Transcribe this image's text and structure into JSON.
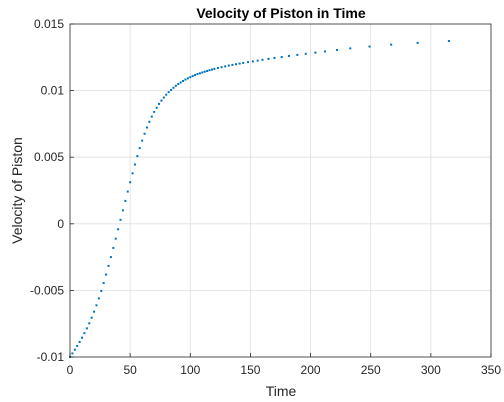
{
  "chart_data": {
    "type": "scatter",
    "title": "Velocity of Piston in Time",
    "xlabel": "Time",
    "ylabel": "Velocity of Piston",
    "xlim": [
      0,
      350
    ],
    "ylim": [
      -0.01,
      0.015
    ],
    "xticks": [
      0,
      50,
      100,
      150,
      200,
      250,
      300,
      350
    ],
    "yticks": [
      -0.01,
      -0.005,
      0,
      0.005,
      0.01,
      0.015
    ],
    "xtick_labels": [
      "0",
      "50",
      "100",
      "150",
      "200",
      "250",
      "300",
      "350"
    ],
    "ytick_labels": [
      "-0.01",
      "-0.005",
      "0",
      "0.005",
      "0.01",
      "0.015"
    ],
    "grid": true,
    "box": true,
    "marker_color": "#0072BD",
    "series": [
      {
        "x": [
          0,
          2,
          4,
          6,
          8,
          10,
          12,
          14,
          16,
          18,
          20,
          22,
          24,
          26,
          28,
          30,
          32,
          34,
          36,
          38,
          40,
          42,
          44,
          46,
          48,
          50,
          52,
          54,
          56,
          58,
          60,
          62,
          64,
          66,
          68,
          70,
          72,
          74,
          76,
          78,
          80,
          82,
          84,
          86,
          88,
          90,
          92,
          94,
          96,
          98,
          100,
          102,
          104,
          106,
          108,
          110,
          112,
          114,
          116,
          118,
          120,
          123,
          126,
          129,
          132,
          135,
          138,
          141,
          144,
          148,
          152,
          156,
          160,
          165,
          170,
          176,
          182,
          189,
          196,
          204,
          212,
          222,
          233,
          249,
          267,
          289,
          315
        ],
        "y": [
          -0.01,
          -0.00973,
          -0.00945,
          -0.00917,
          -0.00887,
          -0.00855,
          -0.00821,
          -0.00785,
          -0.00747,
          -0.00705,
          -0.0066,
          -0.00612,
          -0.0056,
          -0.00504,
          -0.00444,
          -0.00381,
          -0.00316,
          -0.0025,
          -0.00181,
          -0.00112,
          -0.00041,
          0.0003,
          0.00101,
          0.00172,
          0.00242,
          0.00312,
          0.00379,
          0.00445,
          0.00508,
          0.00568,
          0.00624,
          0.00676,
          0.00723,
          0.00766,
          0.00805,
          0.0084,
          0.00871,
          0.009,
          0.00925,
          0.00948,
          0.00969,
          0.00988,
          0.01005,
          0.01021,
          0.01036,
          0.01049,
          0.01061,
          0.01072,
          0.01083,
          0.01092,
          0.01101,
          0.01109,
          0.01117,
          0.01124,
          0.0113,
          0.01136,
          0.01142,
          0.01147,
          0.01153,
          0.01158,
          0.01163,
          0.0117,
          0.01176,
          0.01182,
          0.01188,
          0.01193,
          0.01198,
          0.01203,
          0.01208,
          0.01214,
          0.01219,
          0.01225,
          0.01231,
          0.01238,
          0.01245,
          0.01252,
          0.0126,
          0.01268,
          0.01276,
          0.01285,
          0.01294,
          0.01305,
          0.01317,
          0.01331,
          0.01345,
          0.01358,
          0.01372
        ]
      }
    ]
  }
}
